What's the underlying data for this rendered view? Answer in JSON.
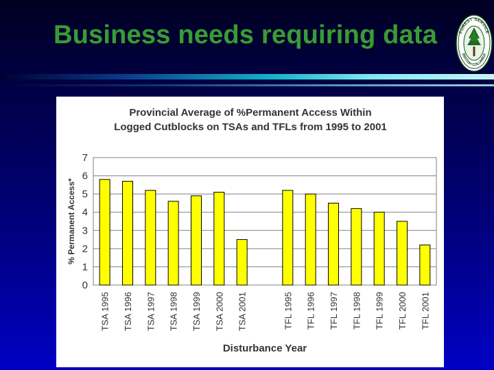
{
  "slide": {
    "title": "Business needs requiring data",
    "logo_text_top": "FOREST SERVICE",
    "logo_text_bottom": "BRITISH COLUMBIA"
  },
  "colors": {
    "title": "#3a9a3a",
    "bar_fill": "#ffff00",
    "bar_stroke": "#000000",
    "plot_background": "#ffffff",
    "grid": "#808080"
  },
  "chart_data": {
    "type": "bar",
    "title_lines": [
      "Provincial Average of %Permanent Access Within",
      "Logged Cutblocks on TSAs and TFLs from 1995 to 2001"
    ],
    "xlabel": "Disturbance Year",
    "ylabel": "% Permanent Access*",
    "ylim": [
      0,
      7
    ],
    "yticks": [
      "0",
      "1",
      "2",
      "3",
      "4",
      "5",
      "6",
      "7"
    ],
    "grid": true,
    "categories": [
      "TSA 1995",
      "TSA 1996",
      "TSA 1997",
      "TSA 1998",
      "TSA 1999",
      "TSA 2000",
      "TSA 2001",
      "",
      "TFL 1995",
      "TFL 1996",
      "TFL 1997",
      "TFL 1998",
      "TFL 1999",
      "TFL 2000",
      "TFL 2001"
    ],
    "values": [
      5.8,
      5.7,
      5.2,
      4.6,
      4.9,
      5.1,
      2.5,
      null,
      5.2,
      5.0,
      4.5,
      4.2,
      4.0,
      3.5,
      2.2
    ]
  }
}
